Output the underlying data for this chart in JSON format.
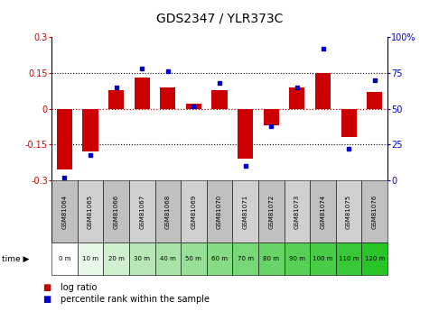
{
  "title": "GDS2347 / YLR373C",
  "samples": [
    "GSM81064",
    "GSM81065",
    "GSM81066",
    "GSM81067",
    "GSM81068",
    "GSM81069",
    "GSM81070",
    "GSM81071",
    "GSM81072",
    "GSM81073",
    "GSM81074",
    "GSM81075",
    "GSM81076"
  ],
  "time_labels": [
    "0 m",
    "10 m",
    "20 m",
    "30 m",
    "40 m",
    "50 m",
    "60 m",
    "70 m",
    "80 m",
    "90 m",
    "100 m",
    "110 m",
    "120 m"
  ],
  "log_ratio": [
    -0.255,
    -0.18,
    0.08,
    0.13,
    0.09,
    0.02,
    0.08,
    -0.21,
    -0.07,
    0.09,
    0.15,
    -0.12,
    0.07
  ],
  "percentile_rank": [
    2,
    18,
    65,
    78,
    76,
    52,
    68,
    10,
    38,
    65,
    92,
    22,
    70
  ],
  "ylim_left": [
    -0.3,
    0.3
  ],
  "ylim_right": [
    0,
    100
  ],
  "yticks_left": [
    -0.3,
    -0.15,
    0,
    0.15,
    0.3
  ],
  "yticks_right": [
    0,
    25,
    50,
    75,
    100
  ],
  "bar_color": "#cc0000",
  "dot_color": "#0000cc",
  "sample_colors": [
    "#c8c8c8",
    "#d8d8d8",
    "#c8c8c8",
    "#d8d8d8",
    "#c8c8c8",
    "#d8d8d8",
    "#c8c8c8",
    "#d8d8d8",
    "#c8c8c8",
    "#d8d8d8",
    "#c8c8c8",
    "#d8d8d8",
    "#c8c8c8"
  ],
  "time_colors": [
    "#ffffff",
    "#e0f5e0",
    "#d0f0d0",
    "#c0ebc0",
    "#b0e6b0",
    "#a0e1a0",
    "#90dc90",
    "#80d780",
    "#70d270",
    "#60cd60",
    "#50c850",
    "#40c340",
    "#30be30"
  ],
  "hline_color": "#cc0000",
  "dotted_color": "#000000",
  "title_fontsize": 10,
  "tick_fontsize": 7,
  "bar_fontsize": 6,
  "legend_fontsize": 7
}
